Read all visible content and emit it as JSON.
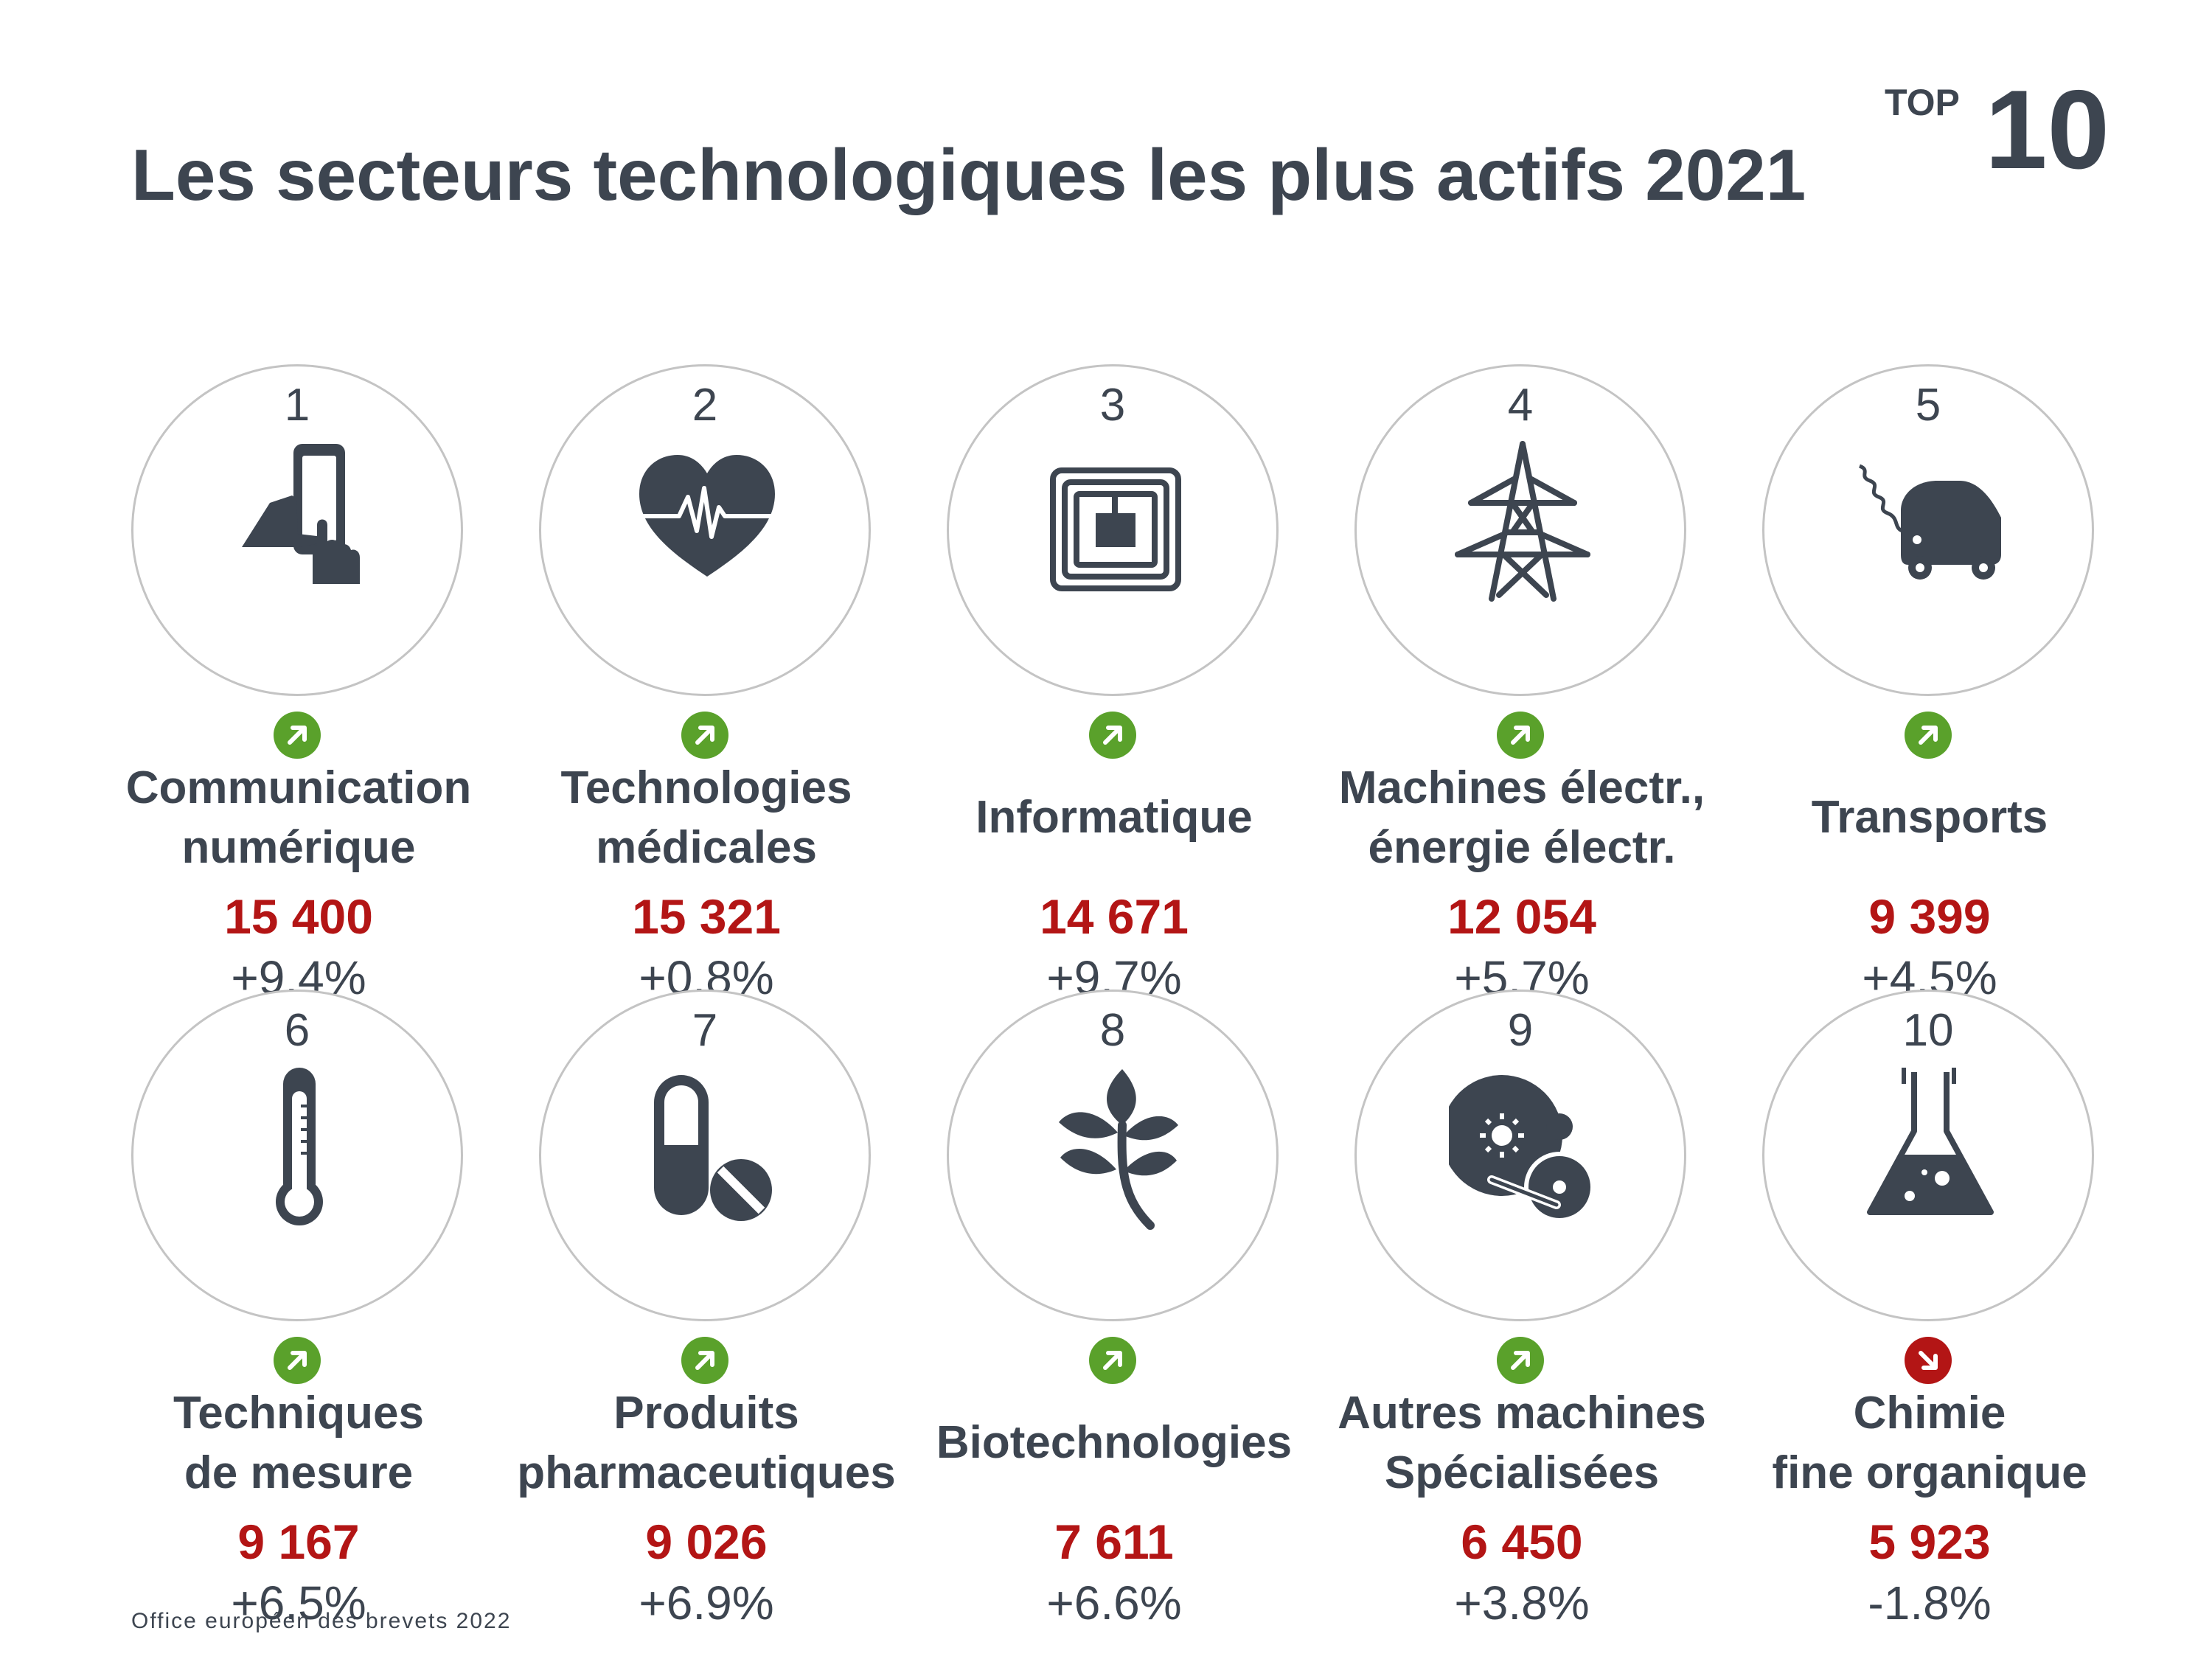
{
  "title": "Les secteurs technologiques les plus actifs 2021",
  "badge": {
    "top_label": "TOP",
    "top_number": "10"
  },
  "colors": {
    "text": "#3d4550",
    "count": "#b31515",
    "trend_up": "#5aa12b",
    "trend_down": "#b31515",
    "circle_border": "#c4c4c4"
  },
  "sectors": [
    {
      "rank": "1",
      "name_line1": "Communication",
      "name_line2": "numérique",
      "count": "15 400",
      "change": "+9.4%",
      "trend": "up",
      "icon": "tablet-hand-icon"
    },
    {
      "rank": "2",
      "name_line1": "Technologies",
      "name_line2": "médicales",
      "count": "15 321",
      "change": "+0.8%",
      "trend": "up",
      "icon": "heart-pulse-icon"
    },
    {
      "rank": "3",
      "name_line1": "Informatique",
      "name_line2": "",
      "count": "14 671",
      "change": "+9.7%",
      "trend": "up",
      "icon": "chip-icon"
    },
    {
      "rank": "4",
      "name_line1": "Machines électr.,",
      "name_line2": "énergie électr.",
      "count": "12 054",
      "change": "+5.7%",
      "trend": "up",
      "icon": "power-pylon-icon"
    },
    {
      "rank": "5",
      "name_line1": "Transports",
      "name_line2": "",
      "count": "9 399",
      "change": "+4.5%",
      "trend": "up",
      "icon": "electric-car-icon"
    },
    {
      "rank": "6",
      "name_line1": "Techniques",
      "name_line2": "de mesure",
      "count": "9 167",
      "change": "+6.5%",
      "trend": "up",
      "icon": "thermometer-icon"
    },
    {
      "rank": "7",
      "name_line1": "Produits",
      "name_line2": "pharmaceutiques",
      "count": "9 026",
      "change": "+6.9%",
      "trend": "up",
      "icon": "pills-icon"
    },
    {
      "rank": "8",
      "name_line1": "Biotechnologies",
      "name_line2": "",
      "count": "7 611",
      "change": "+6.6%",
      "trend": "up",
      "icon": "plant-icon"
    },
    {
      "rank": "9",
      "name_line1": "Autres machines",
      "name_line2": "Spécialisées",
      "count": "6 450",
      "change": "+3.8%",
      "trend": "up",
      "icon": "machine-gears-icon"
    },
    {
      "rank": "10",
      "name_line1": "Chimie",
      "name_line2": "fine organique",
      "count": "5 923",
      "change": "-1.8%",
      "trend": "down",
      "icon": "flask-icon"
    }
  ],
  "source": "Office européen des brevets 2022"
}
